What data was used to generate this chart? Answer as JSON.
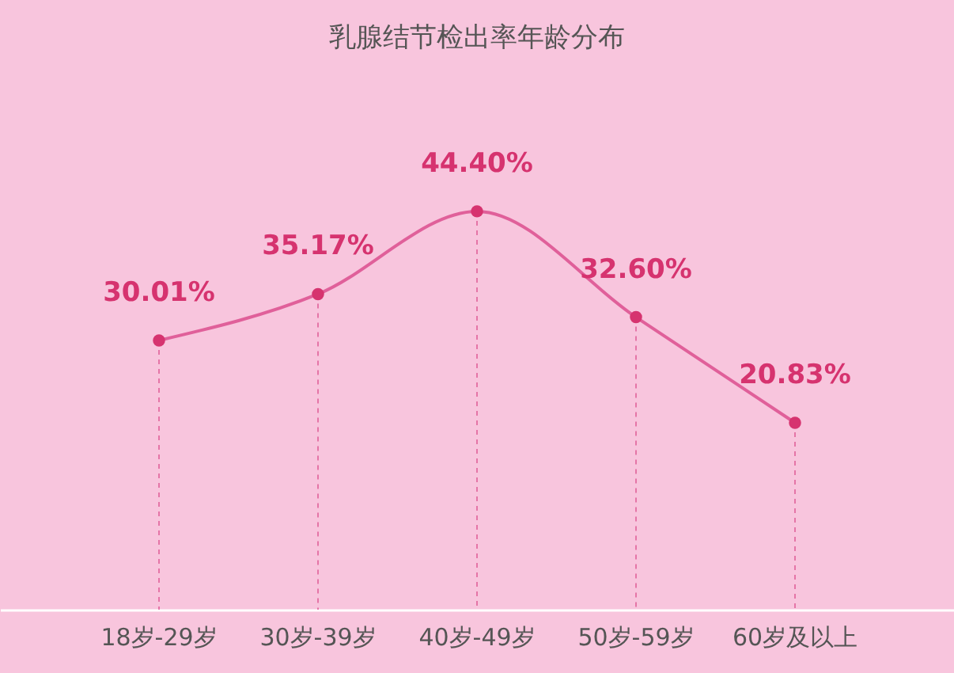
{
  "chart_data": {
    "type": "line",
    "title": "乳腺结节检出率年龄分布",
    "categories": [
      "18岁-29岁",
      "30岁-39岁",
      "40岁-49岁",
      "50岁-59岁",
      "60岁及以上"
    ],
    "series": [
      {
        "color": "#e0609a",
        "values": [
          30.01,
          35.17,
          44.4,
          32.6,
          20.83
        ],
        "value_labels": [
          "30.01%",
          "35.17%",
          "44.40%",
          "32.60%",
          "20.83%"
        ]
      }
    ],
    "marker": "circle",
    "line_style": "solid",
    "grid": "x",
    "tick_labels": "x"
  }
}
